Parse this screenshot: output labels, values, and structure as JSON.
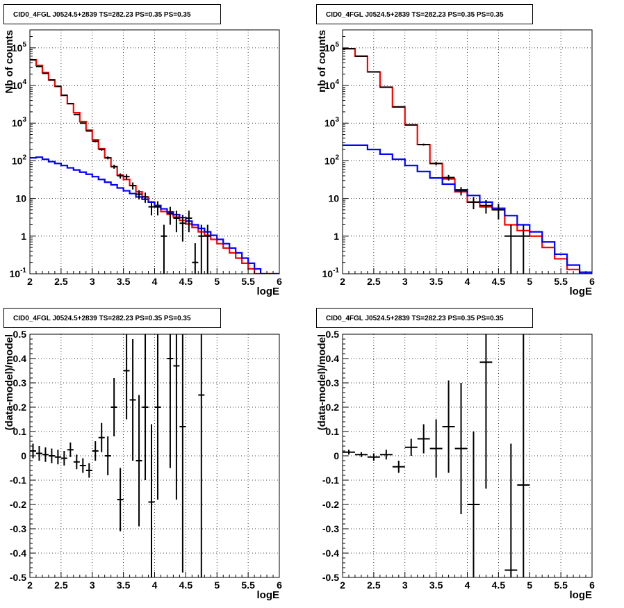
{
  "chart_data": [
    {
      "type": "line",
      "title": "CID0_4FGL J0524.5+2839 TS=282.23 PS=0.35 PS=0.35",
      "xlabel": "logE",
      "ylabel": "Nb of counts",
      "xlim": [
        2,
        6
      ],
      "ylim": [
        0.1,
        300000
      ],
      "yscale": "log",
      "grid": true,
      "x_ticks": [
        "2",
        "2.5",
        "3",
        "3.5",
        "4",
        "4.5",
        "5",
        "5.5",
        "6"
      ],
      "y_ticks": [
        "10^-1",
        "1",
        "10",
        "10^2",
        "10^3",
        "10^4",
        "10^5"
      ],
      "series": [
        {
          "color": "#ff0000",
          "style": "histogram",
          "edges": [
            2,
            2.1,
            2.2,
            2.3,
            2.4,
            2.5,
            2.6,
            2.7,
            2.8,
            2.9,
            3.0,
            3.1,
            3.2,
            3.3,
            3.4,
            3.5,
            3.6,
            3.7,
            3.8,
            3.9,
            4.0,
            4.1,
            4.2,
            4.3,
            4.4,
            4.5,
            4.6,
            4.7,
            4.8,
            4.9,
            5.0,
            5.1,
            5.2,
            5.3,
            5.4,
            5.5,
            5.6,
            5.7,
            5.8,
            5.9,
            6.0
          ],
          "values": [
            48000,
            34000,
            22000,
            14000,
            9500,
            5500,
            3300,
            1900,
            1100,
            650,
            360,
            210,
            120,
            70,
            42,
            32,
            22,
            15,
            11,
            8,
            6,
            4.5,
            3.8,
            3.2,
            2.6,
            2.1,
            1.7,
            1.3,
            1.05,
            0.82,
            0.63,
            0.48,
            0.36,
            0.26,
            0.19,
            0.135,
            0.1,
            0.1,
            0.1,
            0.1
          ]
        },
        {
          "color": "#0000ff",
          "style": "histogram",
          "edges": [
            2,
            2.1,
            2.2,
            2.3,
            2.4,
            2.5,
            2.6,
            2.7,
            2.8,
            2.9,
            3.0,
            3.1,
            3.2,
            3.3,
            3.4,
            3.5,
            3.6,
            3.7,
            3.8,
            3.9,
            4.0,
            4.1,
            4.2,
            4.3,
            4.4,
            4.5,
            4.6,
            4.7,
            4.8,
            4.9,
            5.0,
            5.1,
            5.2,
            5.3,
            5.4,
            5.5,
            5.6,
            5.7,
            5.8,
            5.9,
            6.0
          ],
          "values": [
            120,
            125,
            110,
            95,
            85,
            75,
            65,
            57,
            50,
            44,
            38,
            32,
            27,
            23,
            19,
            16,
            13.5,
            11,
            9.5,
            8,
            6.5,
            5.3,
            4.4,
            3.7,
            3.1,
            2.5,
            2.0,
            1.6,
            1.3,
            1.05,
            0.82,
            0.63,
            0.48,
            0.36,
            0.26,
            0.19,
            0.135,
            0.1,
            0.1,
            0.1
          ]
        },
        {
          "color": "#000000",
          "style": "errorbar",
          "xerr": 0.05,
          "points": [
            [
              2.05,
              48000
            ],
            [
              2.15,
              32000
            ],
            [
              2.25,
              21000
            ],
            [
              2.35,
              14000
            ],
            [
              2.45,
              9500
            ],
            [
              2.55,
              5500
            ],
            [
              2.65,
              3300
            ],
            [
              2.75,
              1700
            ],
            [
              2.85,
              1000
            ],
            [
              2.95,
              620
            ],
            [
              3.05,
              330
            ],
            [
              3.15,
              200
            ],
            [
              3.25,
              120
            ],
            [
              3.35,
              70
            ],
            [
              3.45,
              40
            ],
            [
              3.55,
              38
            ],
            [
              3.65,
              22
            ],
            [
              3.75,
              13
            ],
            [
              3.85,
              11
            ],
            [
              3.95,
              6
            ],
            [
              4.05,
              6
            ],
            [
              4.15,
              1
            ],
            [
              4.25,
              4
            ],
            [
              4.35,
              3
            ],
            [
              4.45,
              2.2
            ],
            [
              4.55,
              3
            ],
            [
              4.65,
              0.2
            ],
            [
              4.75,
              1
            ],
            [
              4.85,
              1
            ]
          ]
        }
      ]
    },
    {
      "type": "line",
      "title": "CID0_4FGL J0524.5+2839 TS=282.23 PS=0.35 PS=0.35",
      "xlabel": "logE",
      "ylabel": "nb of counts",
      "xlim": [
        2,
        6
      ],
      "ylim": [
        0.1,
        300000
      ],
      "yscale": "log",
      "grid": true,
      "x_ticks": [
        "2",
        "2.5",
        "3",
        "3.5",
        "4",
        "4.5",
        "5",
        "5.5",
        "6"
      ],
      "y_ticks": [
        "10^-1",
        "1",
        "10",
        "10^2",
        "10^3",
        "10^4",
        "10^5"
      ],
      "series": [
        {
          "color": "#ff0000",
          "style": "histogram",
          "edges": [
            2,
            2.2,
            2.4,
            2.6,
            2.8,
            3.0,
            3.2,
            3.4,
            3.6,
            3.8,
            4.0,
            4.2,
            4.4,
            4.6,
            4.8,
            5.0,
            5.2,
            5.4,
            5.6,
            5.8,
            6.0
          ],
          "values": [
            95000,
            60000,
            23000,
            9000,
            2700,
            900,
            270,
            85,
            33,
            15,
            8,
            6,
            5,
            2,
            1.4,
            1,
            0.5,
            0.25,
            0.13,
            0.1
          ]
        },
        {
          "color": "#0000ff",
          "style": "histogram",
          "edges": [
            2,
            2.2,
            2.4,
            2.6,
            2.8,
            3.0,
            3.2,
            3.4,
            3.6,
            3.8,
            4.0,
            4.2,
            4.4,
            4.6,
            4.8,
            5.0,
            5.2,
            5.4,
            5.6,
            5.8,
            6.0
          ],
          "values": [
            260,
            260,
            200,
            150,
            110,
            75,
            52,
            35,
            24,
            17,
            12,
            8,
            5.5,
            3.5,
            2,
            1.3,
            0.7,
            0.33,
            0.17,
            0.11
          ]
        },
        {
          "color": "#000000",
          "style": "errorbar",
          "xerr": 0.1,
          "points": [
            [
              2.1,
              95000
            ],
            [
              2.3,
              60000
            ],
            [
              2.5,
              23000
            ],
            [
              2.7,
              9000
            ],
            [
              2.9,
              2700
            ],
            [
              3.1,
              900
            ],
            [
              3.3,
              270
            ],
            [
              3.5,
              85
            ],
            [
              3.7,
              36
            ],
            [
              3.9,
              16
            ],
            [
              4.1,
              8
            ],
            [
              4.3,
              6.5
            ],
            [
              4.5,
              5
            ],
            [
              4.7,
              1
            ],
            [
              4.9,
              1
            ]
          ]
        }
      ]
    },
    {
      "type": "scatter",
      "title": "CID0_4FGL J0524.5+2839 TS=282.23 PS=0.35 PS=0.35",
      "xlabel": "logE",
      "ylabel": "(data-model)/model",
      "xlim": [
        2,
        6
      ],
      "ylim": [
        -0.5,
        0.5
      ],
      "grid": true,
      "x_ticks": [
        "2",
        "2.5",
        "3",
        "3.5",
        "4",
        "4.5",
        "5",
        "5.5",
        "6"
      ],
      "y_ticks": [
        "-0.5",
        "-0.4",
        "-0.3",
        "-0.2",
        "-0.1",
        "0",
        "0.1",
        "0.2",
        "0.3",
        "0.4",
        "0.5"
      ],
      "series": [
        {
          "color": "#000000",
          "style": "errorbar",
          "xerr": 0.05,
          "points": [
            [
              2.05,
              0.02,
              0.03
            ],
            [
              2.15,
              0.01,
              0.03
            ],
            [
              2.25,
              0.005,
              0.03
            ],
            [
              2.35,
              0.0,
              0.03
            ],
            [
              2.45,
              -0.005,
              0.03
            ],
            [
              2.55,
              -0.01,
              0.03
            ],
            [
              2.65,
              0.025,
              0.03
            ],
            [
              2.75,
              -0.025,
              0.03
            ],
            [
              2.85,
              -0.04,
              0.03
            ],
            [
              2.95,
              -0.06,
              0.03
            ],
            [
              3.05,
              0.02,
              0.04
            ],
            [
              3.15,
              0.075,
              0.06
            ],
            [
              3.25,
              0.0,
              0.08
            ],
            [
              3.35,
              0.2,
              0.12
            ],
            [
              3.45,
              -0.18,
              0.13
            ],
            [
              3.55,
              0.35,
              0.2
            ],
            [
              3.65,
              0.23,
              0.25
            ],
            [
              3.75,
              -0.02,
              0.27
            ],
            [
              3.85,
              0.2,
              0.3
            ],
            [
              3.95,
              -0.19,
              0.32
            ],
            [
              4.05,
              0.2,
              0.38
            ],
            [
              4.25,
              0.4,
              0.45
            ],
            [
              4.35,
              0.37,
              0.55
            ],
            [
              4.45,
              0.12,
              0.6
            ],
            [
              4.75,
              0.25,
              0.8
            ]
          ]
        }
      ]
    },
    {
      "type": "scatter",
      "title": "CID0_4FGL J0524.5+2839 TS=282.23 PS=0.35 PS=0.35",
      "xlabel": "logE",
      "ylabel": "(data-model)/model",
      "xlim": [
        2,
        6
      ],
      "ylim": [
        -0.5,
        0.5
      ],
      "grid": true,
      "x_ticks": [
        "2",
        "2.5",
        "3",
        "3.5",
        "4",
        "4.5",
        "5",
        "5.5",
        "6"
      ],
      "y_ticks": [
        "-0.5",
        "-0.4",
        "-0.3",
        "-0.2",
        "-0.1",
        "0",
        "0.1",
        "0.2",
        "0.3",
        "0.4",
        "0.5"
      ],
      "series": [
        {
          "color": "#000000",
          "style": "errorbar",
          "xerr": 0.1,
          "points": [
            [
              2.1,
              0.015,
              0.01
            ],
            [
              2.3,
              0.005,
              0.01
            ],
            [
              2.5,
              -0.005,
              0.015
            ],
            [
              2.7,
              0.005,
              0.02
            ],
            [
              2.9,
              -0.045,
              0.025
            ],
            [
              3.1,
              0.035,
              0.035
            ],
            [
              3.3,
              0.07,
              0.06
            ],
            [
              3.5,
              0.03,
              0.12
            ],
            [
              3.7,
              0.12,
              0.19
            ],
            [
              3.9,
              0.03,
              0.27
            ],
            [
              4.1,
              -0.2,
              0.3
            ],
            [
              4.3,
              0.385,
              0.52
            ],
            [
              4.7,
              -0.47,
              0.52
            ],
            [
              4.9,
              -0.12,
              0.7
            ]
          ]
        }
      ]
    }
  ]
}
